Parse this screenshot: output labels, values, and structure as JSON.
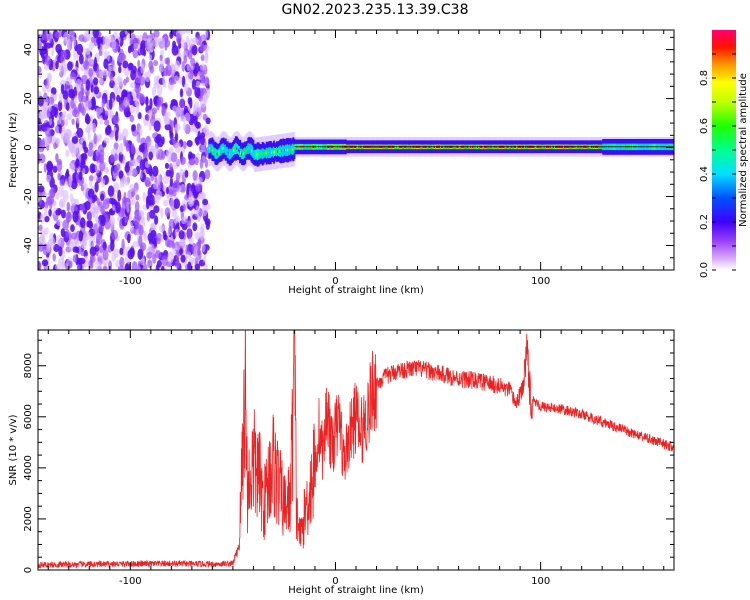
{
  "title": "GN02.2023.235.13.39.C38",
  "chart_data": [
    {
      "type": "heatmap",
      "xlabel": "Height of straight line (km)",
      "ylabel": "Frequency (Hz)",
      "xlim": [
        -145,
        165
      ],
      "ylim": [
        -50,
        48
      ],
      "x_ticks": [
        -100,
        0,
        100
      ],
      "y_ticks": [
        -40,
        -20,
        0,
        20,
        40
      ],
      "colorbar": {
        "label": "Normalized spectral amplitude",
        "range": [
          0,
          1
        ],
        "ticks": [
          0.0,
          0.2,
          0.4,
          0.6,
          0.8
        ],
        "colors": [
          "#ffffff",
          "#b060ff",
          "#4000ff",
          "#0040ff",
          "#00e0ff",
          "#00ff40",
          "#a0ff00",
          "#ffff00",
          "#ff8000",
          "#ff0000",
          "#ff0060"
        ]
      },
      "regions": [
        {
          "x": [
            -145,
            -62
          ],
          "freq_range": [
            -50,
            48
          ],
          "amplitude": 0.15,
          "description_shown": false
        },
        {
          "x": [
            -62,
            -20
          ],
          "center_freq": [
            -3,
            0
          ],
          "bandwidth": 6,
          "amplitude": 0.5
        },
        {
          "x": [
            -20,
            165
          ],
          "center_freq": [
            0,
            0
          ],
          "bandwidth": 3,
          "amplitude": 0.9
        }
      ]
    },
    {
      "type": "line",
      "xlabel": "Height of straight line (km)",
      "ylabel": "SNR (10 * v/v)",
      "xlim": [
        -145,
        165
      ],
      "ylim": [
        0,
        9400
      ],
      "x_ticks": [
        -100,
        0,
        100
      ],
      "y_ticks": [
        0,
        2000,
        4000,
        6000,
        8000
      ],
      "series": [
        {
          "color": "#ee2222",
          "x": [
            -145,
            -120,
            -100,
            -80,
            -60,
            -50,
            -47,
            -45,
            -44,
            -43,
            -40,
            -37,
            -35,
            -32,
            -30,
            -28,
            -25,
            -22,
            -20,
            -19,
            -17,
            -14,
            -10,
            -8,
            -6,
            -4,
            -2,
            0,
            2,
            4,
            6,
            8,
            10,
            12,
            14,
            16,
            18,
            20,
            25,
            30,
            40,
            50,
            60,
            70,
            80,
            85,
            88,
            90,
            92,
            93,
            95,
            100,
            110,
            120,
            130,
            140,
            150,
            165
          ],
          "y": [
            200,
            220,
            240,
            250,
            230,
            250,
            1000,
            5000,
            7900,
            3000,
            4200,
            3600,
            2500,
            3800,
            4200,
            3400,
            2500,
            2800,
            8400,
            2200,
            1300,
            2600,
            4000,
            5500,
            4500,
            6500,
            4800,
            5400,
            6000,
            4200,
            5000,
            5500,
            6100,
            5200,
            5800,
            6200,
            7000,
            7300,
            7600,
            7800,
            7900,
            7700,
            7500,
            7400,
            7200,
            7000,
            6500,
            6900,
            7200,
            9200,
            6800,
            6400,
            6300,
            6100,
            5800,
            5500,
            5200,
            4800
          ]
        }
      ]
    }
  ]
}
